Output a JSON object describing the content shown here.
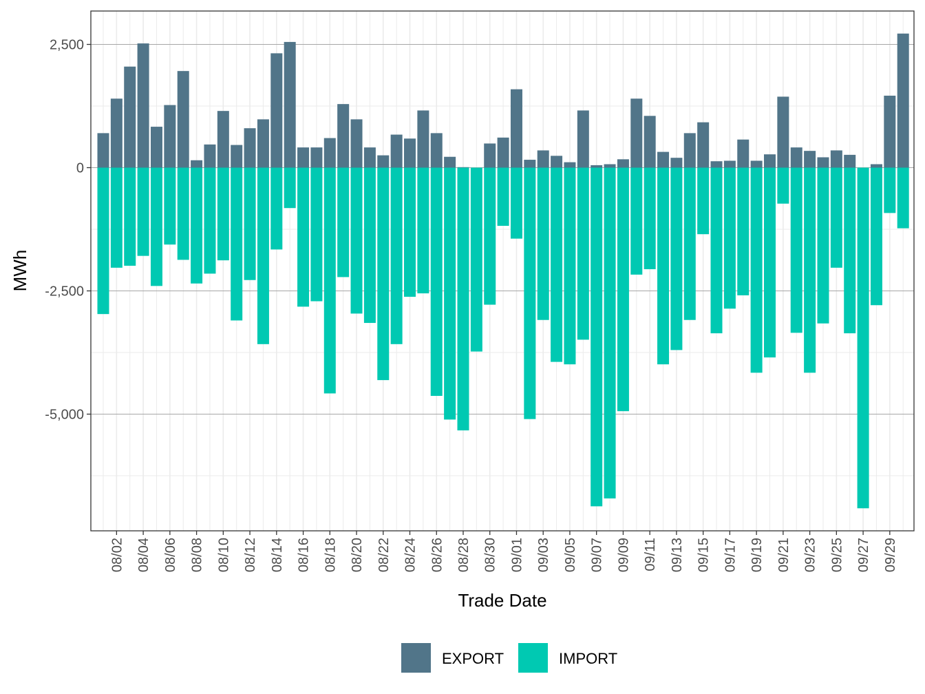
{
  "chart_data": {
    "type": "bar",
    "stacking": "diverging",
    "xlabel": "Trade Date",
    "ylabel": "MWh",
    "ylim": [
      -7300,
      3000
    ],
    "y_ticks": [
      2500,
      0,
      -2500,
      -5000
    ],
    "y_tick_labels": [
      "2,500",
      "0",
      "-2,500",
      "-5,000"
    ],
    "y_minor_ticks": [
      1250,
      -1250,
      -3750,
      -6250
    ],
    "x_tick_labels": [
      "08/02",
      "08/04",
      "08/06",
      "08/08",
      "08/10",
      "08/12",
      "08/14",
      "08/16",
      "08/18",
      "08/20",
      "08/22",
      "08/24",
      "08/26",
      "08/28",
      "08/30",
      "09/01",
      "09/03",
      "09/05",
      "09/07",
      "09/09",
      "09/11",
      "09/13",
      "09/15",
      "09/17",
      "09/19",
      "09/21",
      "09/23",
      "09/25",
      "09/27",
      "09/29"
    ],
    "categories": [
      "08/01",
      "08/02",
      "08/03",
      "08/04",
      "08/05",
      "08/06",
      "08/07",
      "08/08",
      "08/09",
      "08/10",
      "08/11",
      "08/12",
      "08/13",
      "08/14",
      "08/15",
      "08/16",
      "08/17",
      "08/18",
      "08/19",
      "08/20",
      "08/21",
      "08/22",
      "08/23",
      "08/24",
      "08/25",
      "08/26",
      "08/27",
      "08/28",
      "08/29",
      "08/30",
      "08/31",
      "09/01",
      "09/02",
      "09/03",
      "09/04",
      "09/05",
      "09/06",
      "09/07",
      "09/08",
      "09/09",
      "09/10",
      "09/11",
      "09/12",
      "09/13",
      "09/14",
      "09/15",
      "09/16",
      "09/17",
      "09/18",
      "09/19",
      "09/20",
      "09/21",
      "09/22",
      "09/23",
      "09/24",
      "09/25",
      "09/26",
      "09/27",
      "09/28",
      "09/29",
      "09/30"
    ],
    "series": [
      {
        "name": "EXPORT",
        "color": "#517589",
        "values": [
          700,
          1400,
          2050,
          2520,
          830,
          1270,
          1960,
          150,
          470,
          1150,
          460,
          800,
          980,
          2320,
          2550,
          410,
          410,
          600,
          1290,
          980,
          410,
          250,
          670,
          590,
          1160,
          700,
          220,
          10,
          0,
          490,
          610,
          1590,
          160,
          350,
          240,
          110,
          1160,
          50,
          70,
          170,
          1400,
          1050,
          320,
          200,
          700,
          920,
          130,
          140,
          570,
          140,
          270,
          1440,
          410,
          340,
          210,
          350,
          260,
          0,
          70,
          1460,
          2720
        ]
      },
      {
        "name": "IMPORT",
        "color": "#00c9b2",
        "values": [
          -2970,
          -2030,
          -1990,
          -1790,
          -2400,
          -1560,
          -1870,
          -2350,
          -2150,
          -1880,
          -3100,
          -2280,
          -3580,
          -1660,
          -820,
          -2820,
          -2710,
          -4580,
          -2220,
          -2960,
          -3150,
          -4310,
          -3580,
          -2620,
          -2550,
          -4630,
          -5110,
          -5330,
          -3730,
          -2780,
          -1180,
          -1440,
          -5100,
          -3090,
          -3940,
          -3990,
          -3490,
          -6870,
          -6710,
          -4940,
          -2170,
          -2060,
          -3990,
          -3700,
          -3090,
          -1350,
          -3360,
          -2860,
          -2590,
          -4160,
          -3850,
          -730,
          -3350,
          -4160,
          -3160,
          -2030,
          -3360,
          -6910,
          -2790,
          -920,
          -1230
        ]
      }
    ],
    "legend": {
      "position": "bottom",
      "entries": [
        {
          "label": "EXPORT",
          "color": "#517589"
        },
        {
          "label": "IMPORT",
          "color": "#00c9b2"
        }
      ]
    }
  }
}
